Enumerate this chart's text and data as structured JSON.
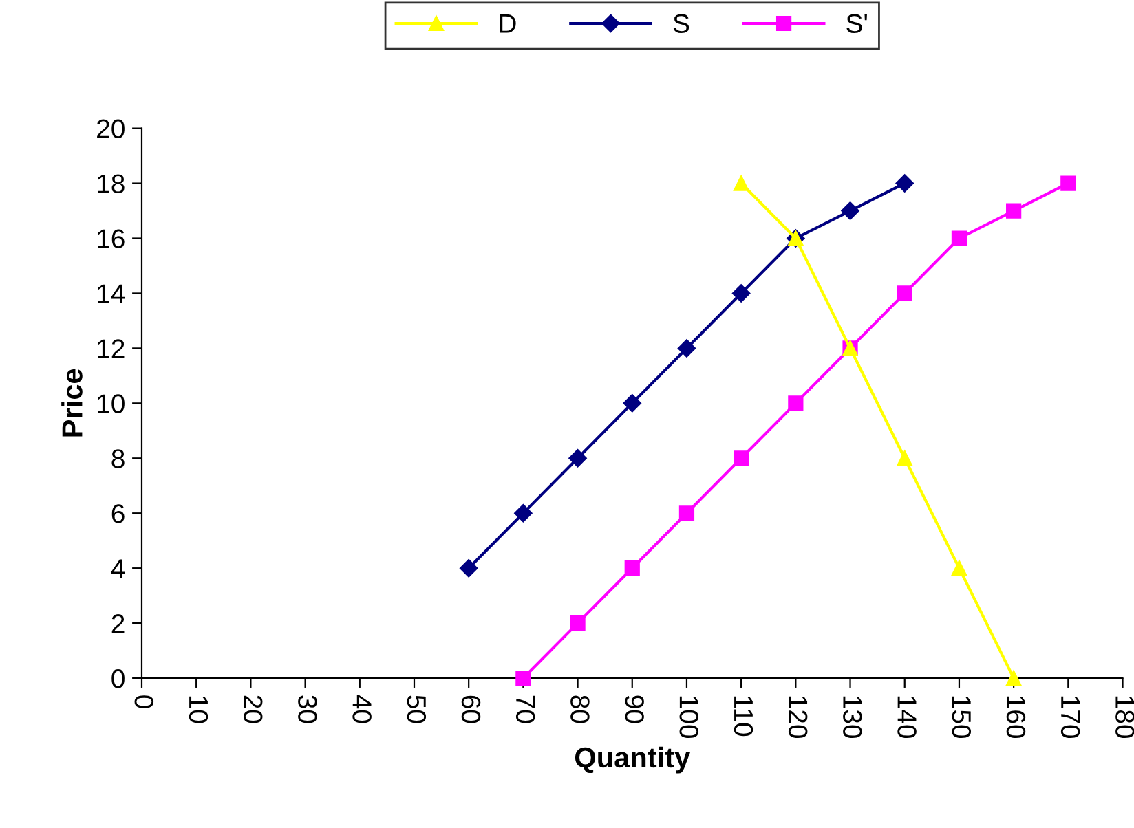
{
  "chart_data": {
    "type": "line",
    "xlabel": "Quantity",
    "ylabel": "Price",
    "xlim": [
      0,
      180
    ],
    "ylim": [
      0,
      20
    ],
    "xticks": [
      0,
      10,
      20,
      30,
      40,
      50,
      60,
      70,
      80,
      90,
      100,
      110,
      120,
      130,
      140,
      150,
      160,
      170,
      180
    ],
    "yticks": [
      0,
      2,
      4,
      6,
      8,
      10,
      12,
      14,
      16,
      18,
      20
    ],
    "grid": false,
    "legend": "top",
    "line_style": "solid",
    "series": [
      {
        "name": "D",
        "color": "#ffff00",
        "marker": "triangle",
        "x": [
          110,
          120,
          130,
          140,
          150,
          160
        ],
        "values": [
          18,
          16,
          12,
          8,
          4,
          0
        ]
      },
      {
        "name": "S",
        "color": "#000080",
        "marker": "diamond",
        "x": [
          60,
          70,
          80,
          90,
          100,
          110,
          120,
          130,
          140
        ],
        "values": [
          4,
          6,
          8,
          10,
          12,
          14,
          16,
          17,
          18
        ]
      },
      {
        "name": "S'",
        "color": "#ff00ff",
        "marker": "square",
        "x": [
          70,
          80,
          90,
          100,
          110,
          120,
          130,
          140,
          150,
          160,
          170
        ],
        "values": [
          0,
          2,
          4,
          6,
          8,
          10,
          12,
          14,
          16,
          17,
          18
        ]
      }
    ]
  }
}
